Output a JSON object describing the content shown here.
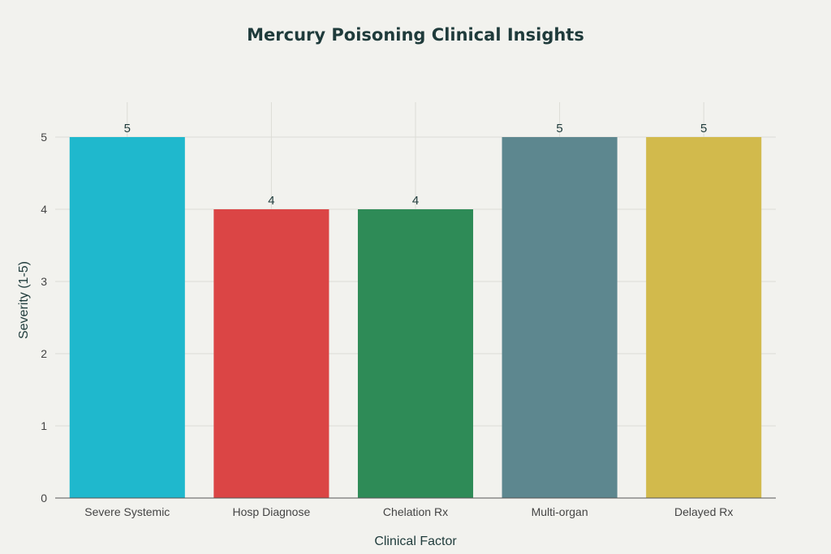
{
  "chart_data": {
    "type": "bar",
    "title": "Mercury Poisoning Clinical Insights",
    "xlabel": "Clinical Factor",
    "ylabel": "Severity (1-5)",
    "categories": [
      "Severe Systemic",
      "Hosp Diagnose",
      "Chelation Rx",
      "Multi-organ",
      "Delayed Rx"
    ],
    "values": [
      5,
      4,
      4,
      5,
      5
    ],
    "colors": [
      "#1fb8cd",
      "#db4545",
      "#2e8b57",
      "#5d878f",
      "#d2ba4c"
    ],
    "ylim": [
      0,
      5
    ],
    "yticks": [
      0,
      1,
      2,
      3,
      4,
      5
    ],
    "grid": true,
    "data_labels": true,
    "legend": "none"
  }
}
